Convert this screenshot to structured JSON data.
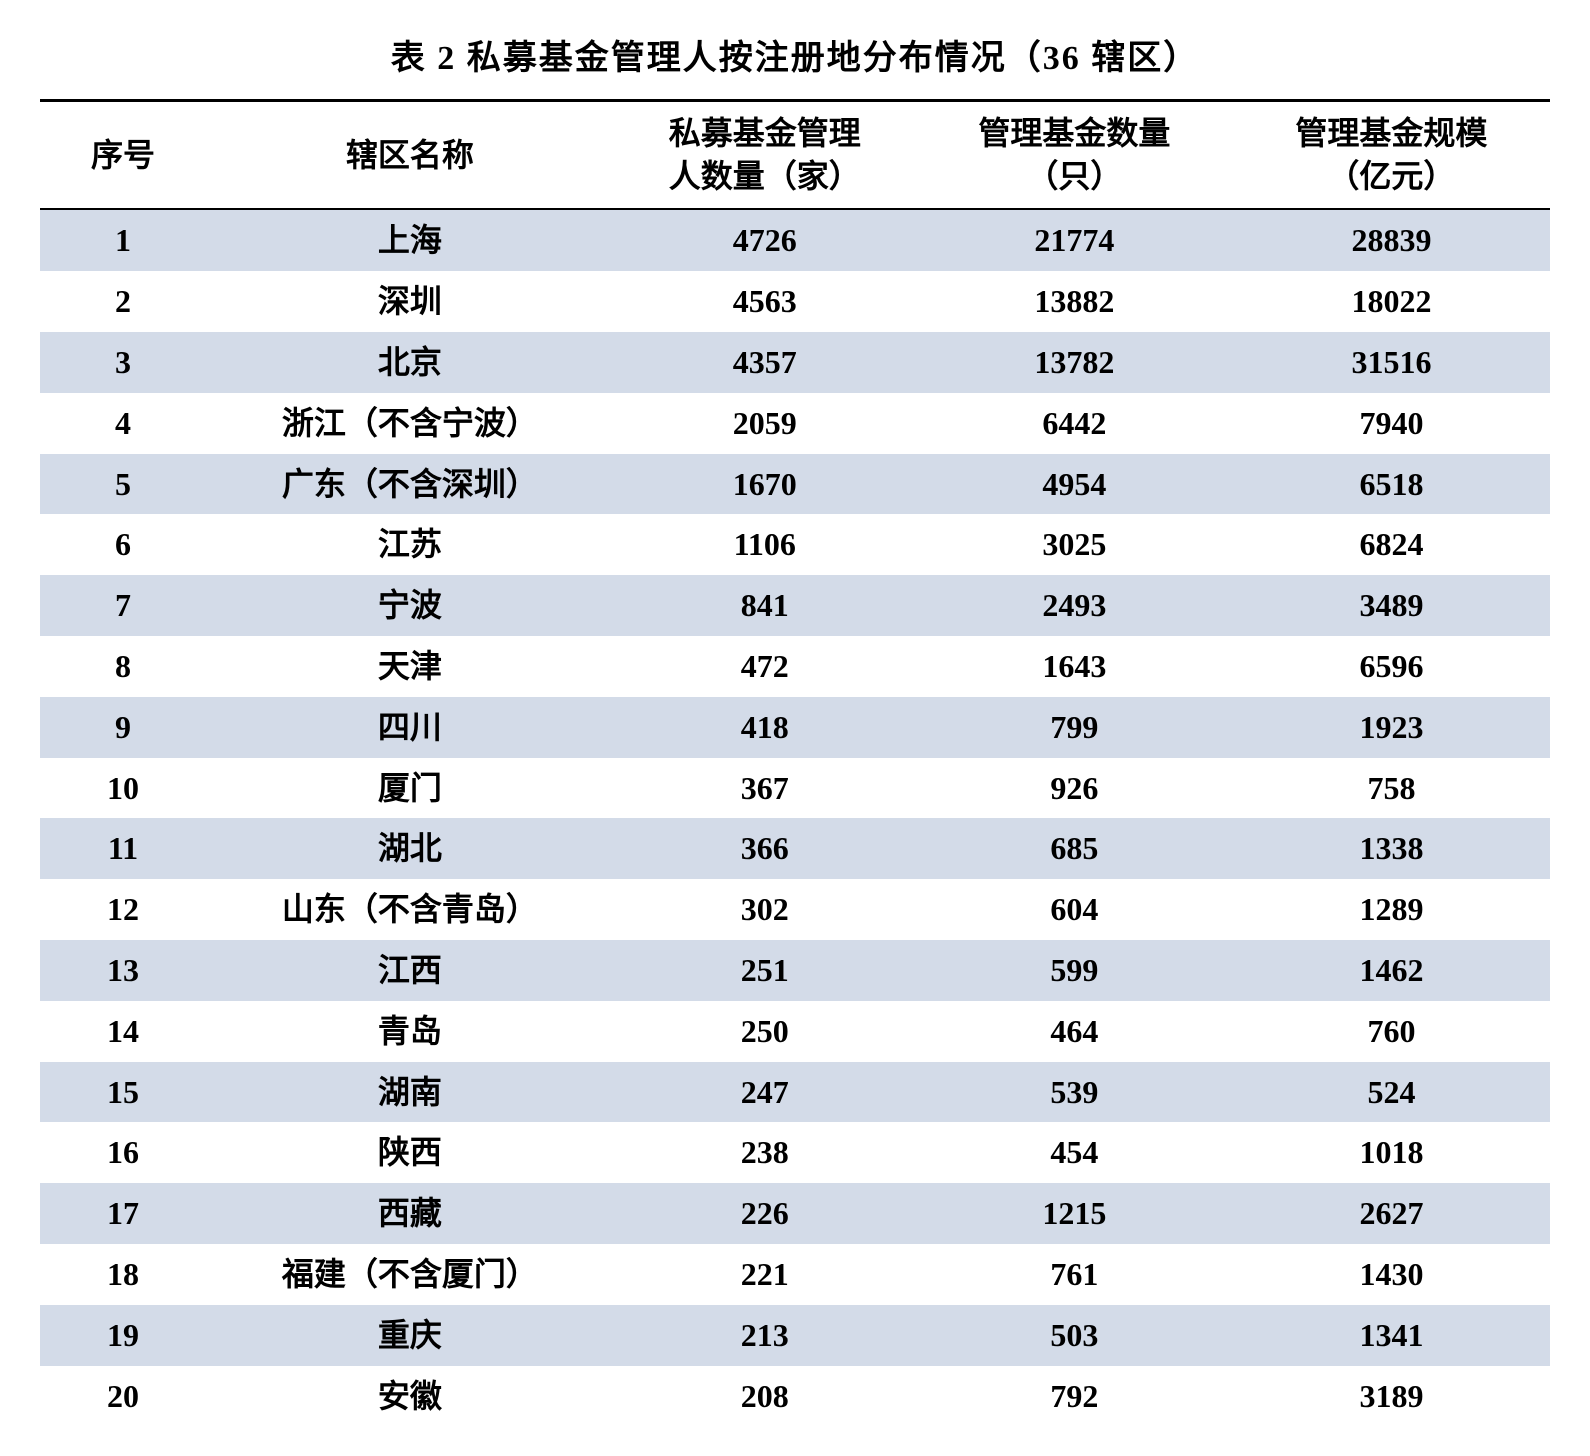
{
  "title": "表 2  私募基金管理人按注册地分布情况（36 辖区）",
  "table": {
    "type": "table",
    "columns": [
      {
        "label": "序号"
      },
      {
        "label": "辖区名称"
      },
      {
        "label_l1": "私募基金管理",
        "label_l2": "人数量（家）"
      },
      {
        "label_l1": "管理基金数量",
        "label_l2": "（只）"
      },
      {
        "label_l1": "管理基金规模",
        "label_l2": "（亿元）"
      }
    ],
    "header_border_top_color": "#000000",
    "header_border_bottom_color": "#000000",
    "row_odd_bg": "#d3dbe8",
    "row_even_bg": "#ffffff",
    "text_color": "#000000",
    "font_size_pt": 24,
    "font_weight": "bold",
    "rows": [
      {
        "idx": "1",
        "name": "上海",
        "managers": "4726",
        "funds": "21774",
        "aum": "28839"
      },
      {
        "idx": "2",
        "name": "深圳",
        "managers": "4563",
        "funds": "13882",
        "aum": "18022"
      },
      {
        "idx": "3",
        "name": "北京",
        "managers": "4357",
        "funds": "13782",
        "aum": "31516"
      },
      {
        "idx": "4",
        "name": "浙江（不含宁波）",
        "managers": "2059",
        "funds": "6442",
        "aum": "7940"
      },
      {
        "idx": "5",
        "name": "广东（不含深圳）",
        "managers": "1670",
        "funds": "4954",
        "aum": "6518"
      },
      {
        "idx": "6",
        "name": "江苏",
        "managers": "1106",
        "funds": "3025",
        "aum": "6824"
      },
      {
        "idx": "7",
        "name": "宁波",
        "managers": "841",
        "funds": "2493",
        "aum": "3489"
      },
      {
        "idx": "8",
        "name": "天津",
        "managers": "472",
        "funds": "1643",
        "aum": "6596"
      },
      {
        "idx": "9",
        "name": "四川",
        "managers": "418",
        "funds": "799",
        "aum": "1923"
      },
      {
        "idx": "10",
        "name": "厦门",
        "managers": "367",
        "funds": "926",
        "aum": "758"
      },
      {
        "idx": "11",
        "name": "湖北",
        "managers": "366",
        "funds": "685",
        "aum": "1338"
      },
      {
        "idx": "12",
        "name": "山东（不含青岛）",
        "managers": "302",
        "funds": "604",
        "aum": "1289"
      },
      {
        "idx": "13",
        "name": "江西",
        "managers": "251",
        "funds": "599",
        "aum": "1462"
      },
      {
        "idx": "14",
        "name": "青岛",
        "managers": "250",
        "funds": "464",
        "aum": "760"
      },
      {
        "idx": "15",
        "name": "湖南",
        "managers": "247",
        "funds": "539",
        "aum": "524"
      },
      {
        "idx": "16",
        "name": "陕西",
        "managers": "238",
        "funds": "454",
        "aum": "1018"
      },
      {
        "idx": "17",
        "name": "西藏",
        "managers": "226",
        "funds": "1215",
        "aum": "2627"
      },
      {
        "idx": "18",
        "name": "福建（不含厦门）",
        "managers": "221",
        "funds": "761",
        "aum": "1430"
      },
      {
        "idx": "19",
        "name": "重庆",
        "managers": "213",
        "funds": "503",
        "aum": "1341"
      },
      {
        "idx": "20",
        "name": "安徽",
        "managers": "208",
        "funds": "792",
        "aum": "3189"
      }
    ]
  }
}
